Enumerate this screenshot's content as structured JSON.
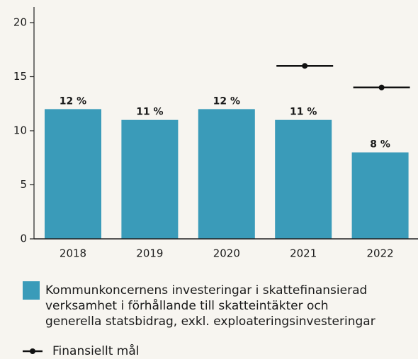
{
  "chart_data": {
    "type": "bar",
    "categories": [
      "2018",
      "2019",
      "2020",
      "2021",
      "2022"
    ],
    "series": [
      {
        "name": "Kommunkoncernens investeringar i skattefinansierad\nverksamhet i förhållande till skatteintäkter och\ngenerella statsbidrag, exkl. exploateringsinvesteringar",
        "type": "bar",
        "color": "#3a9bb9",
        "values": [
          12,
          11,
          12,
          11,
          8
        ],
        "value_labels": [
          "12 %",
          "11 %",
          "12 %",
          "11 %",
          "8 %"
        ]
      },
      {
        "name": "Finansiellt mål",
        "type": "target",
        "color": "#111111",
        "values": [
          null,
          null,
          null,
          16,
          14
        ]
      }
    ],
    "ylim": [
      0,
      20
    ],
    "yticks": [
      0,
      5,
      10,
      15,
      20
    ],
    "grid": false
  }
}
